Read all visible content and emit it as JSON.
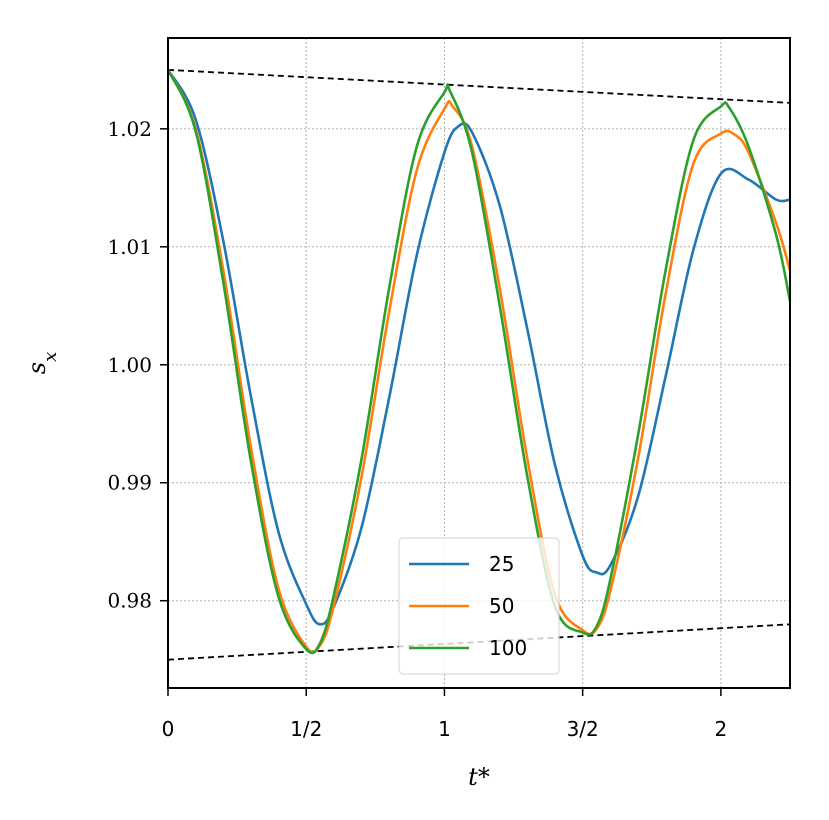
{
  "chart_data": {
    "type": "line",
    "xlabel": "t*",
    "ylabel": "s_x",
    "xlim": [
      0,
      2.25
    ],
    "ylim": [
      0.9726,
      1.0277
    ],
    "grid": true,
    "legend_position": "lower-center",
    "x_ticks": [
      {
        "value": 0,
        "label": "0"
      },
      {
        "value": 0.5,
        "label": "1/2"
      },
      {
        "value": 1,
        "label": "1"
      },
      {
        "value": 1.5,
        "label": "3/2"
      },
      {
        "value": 2,
        "label": "2"
      }
    ],
    "y_ticks": [
      {
        "value": 0.98,
        "label": "0.98"
      },
      {
        "value": 0.99,
        "label": "0.99"
      },
      {
        "value": 1.0,
        "label": "1.00"
      },
      {
        "value": 1.01,
        "label": "1.01"
      },
      {
        "value": 1.02,
        "label": "1.02"
      }
    ],
    "series": [
      {
        "name": "25",
        "color": "#1f77b4",
        "x": [
          0,
          0.1,
          0.2,
          0.3,
          0.4,
          0.5,
          0.55,
          0.6,
          0.7,
          0.8,
          0.9,
          1.0,
          1.05,
          1.1,
          1.2,
          1.3,
          1.4,
          1.5,
          1.55,
          1.6,
          1.7,
          1.8,
          1.9,
          2.0,
          2.1,
          2.2,
          2.25
        ],
        "y": [
          1.025,
          1.0208,
          1.0105,
          0.9973,
          0.9858,
          0.9797,
          0.978,
          0.9795,
          0.9862,
          0.9972,
          1.0093,
          1.018,
          1.0202,
          1.0197,
          1.0135,
          1.003,
          0.9915,
          0.9838,
          0.9824,
          0.983,
          0.9888,
          0.999,
          1.0097,
          1.0162,
          1.0157,
          1.014,
          1.014
        ]
      },
      {
        "name": "50",
        "color": "#ff7f0e",
        "x": [
          0,
          0.1,
          0.2,
          0.3,
          0.4,
          0.5,
          0.55,
          0.6,
          0.7,
          0.8,
          0.9,
          1.0,
          1.03,
          1.1,
          1.2,
          1.3,
          1.4,
          1.5,
          1.55,
          1.6,
          1.7,
          1.8,
          1.9,
          2.0,
          2.05,
          2.1,
          2.2,
          2.25
        ],
        "y": [
          1.025,
          1.02,
          1.008,
          0.993,
          0.981,
          0.9761,
          0.9762,
          0.9796,
          0.9905,
          1.0045,
          1.0165,
          1.0217,
          1.0219,
          1.0185,
          1.0065,
          0.992,
          0.9805,
          0.9775,
          0.9776,
          0.9808,
          0.992,
          1.006,
          1.017,
          1.0196,
          1.0195,
          1.018,
          1.012,
          1.008
        ]
      },
      {
        "name": "100",
        "color": "#2ca02c",
        "x": [
          0,
          0.1,
          0.2,
          0.3,
          0.4,
          0.5,
          0.55,
          0.6,
          0.7,
          0.8,
          0.9,
          1.0,
          1.02,
          1.1,
          1.2,
          1.3,
          1.4,
          1.5,
          1.55,
          1.6,
          1.7,
          1.8,
          1.9,
          2.0,
          2.03,
          2.1,
          2.2,
          2.25
        ],
        "y": [
          1.025,
          1.0198,
          1.007,
          0.9918,
          0.9803,
          0.9759,
          0.9764,
          0.9805,
          0.992,
          1.0065,
          1.0185,
          1.0231,
          1.0232,
          1.018,
          1.005,
          0.9905,
          0.9795,
          0.9773,
          0.9778,
          0.9818,
          0.994,
          1.008,
          1.019,
          1.0219,
          1.0218,
          1.0185,
          1.011,
          1.0054
        ]
      }
    ],
    "reference_lines": [
      {
        "x": [
          0,
          2.25
        ],
        "y": [
          1.025,
          1.0222
        ],
        "style": "dashed",
        "color": "#000000"
      },
      {
        "x": [
          0,
          2.25
        ],
        "y": [
          0.975,
          0.978
        ],
        "style": "dashed",
        "color": "#000000"
      }
    ]
  }
}
